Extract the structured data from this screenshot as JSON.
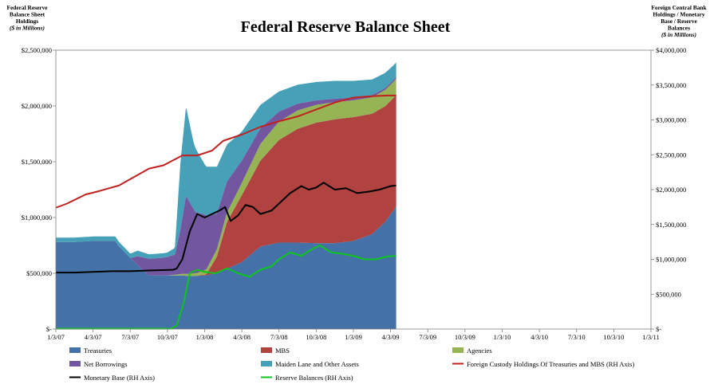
{
  "chart_data": {
    "type": "area",
    "title": "Federal Reserve Balance Sheet",
    "left_axis": {
      "title_lines": [
        "Federal Reserve",
        "Balance Sheet",
        "Holdings"
      ],
      "unit": "($ in Millions)",
      "ylim": [
        0,
        2500000
      ],
      "ticks": [
        {
          "value": 0,
          "label": "$-"
        },
        {
          "value": 500000,
          "label": "$500,000"
        },
        {
          "value": 1000000,
          "label": "$1,000,000"
        },
        {
          "value": 1500000,
          "label": "$1,500,000"
        },
        {
          "value": 2000000,
          "label": "$2,000,000"
        },
        {
          "value": 2500000,
          "label": "$2,500,000"
        }
      ]
    },
    "right_axis": {
      "title_lines": [
        "Foreign Central Bank",
        "Holdings / Monetary",
        "Base / Reserve",
        "Balances"
      ],
      "unit": "($ in Millions)",
      "ylim": [
        0,
        4000000
      ],
      "ticks": [
        {
          "value": 0,
          "label": "$-"
        },
        {
          "value": 500000,
          "label": "$500,000"
        },
        {
          "value": 1000000,
          "label": "$1,000,000"
        },
        {
          "value": 1500000,
          "label": "$1,500,000"
        },
        {
          "value": 2000000,
          "label": "$2,000,000"
        },
        {
          "value": 2500000,
          "label": "$2,500,000"
        },
        {
          "value": 3000000,
          "label": "$3,000,000"
        },
        {
          "value": 3500000,
          "label": "$3,500,000"
        },
        {
          "value": 4000000,
          "label": "$4,000,000"
        }
      ]
    },
    "x_labels": [
      "1/3/07",
      "4/3/07",
      "7/3/07",
      "10/3/07",
      "1/3/08",
      "4/3/08",
      "7/3/08",
      "10/3/08",
      "1/3/09",
      "4/3/09",
      "7/3/09",
      "10/3/09",
      "1/3/10",
      "4/3/10",
      "7/3/10",
      "10/3/10",
      "1/3/11"
    ],
    "grid": false,
    "legend_position": "bottom",
    "stacked_series": [
      {
        "name": "Treasuries",
        "color": "#4472a8",
        "axis": "left",
        "points": [
          [
            0,
            780000
          ],
          [
            0.5,
            780000
          ],
          [
            1.0,
            790000
          ],
          [
            1.5,
            790000
          ],
          [
            1.6,
            790000
          ],
          [
            1.7,
            740000
          ],
          [
            2.05,
            620000
          ],
          [
            2.5,
            480000
          ],
          [
            3.4,
            480000
          ],
          [
            3.6,
            475000
          ],
          [
            4.0,
            480000
          ],
          [
            4.33,
            500000
          ],
          [
            5.0,
            600000
          ],
          [
            5.5,
            740000
          ],
          [
            6.0,
            775000
          ],
          [
            6.5,
            775000
          ],
          [
            7.0,
            770000
          ],
          [
            7.5,
            770000
          ],
          [
            8.0,
            790000
          ],
          [
            8.5,
            850000
          ],
          [
            8.85,
            960000
          ],
          [
            9.05,
            1050000
          ],
          [
            9.15,
            1100000
          ]
        ]
      },
      {
        "name": "MBS",
        "color": "#b0433f",
        "axis": "left",
        "points": [
          [
            0,
            0
          ],
          [
            3.8,
            0
          ],
          [
            4.05,
            10000
          ],
          [
            4.33,
            150000
          ],
          [
            4.6,
            420000
          ],
          [
            5.0,
            600000
          ],
          [
            5.5,
            770000
          ],
          [
            6.0,
            920000
          ],
          [
            6.5,
            1020000
          ],
          [
            7.0,
            1080000
          ],
          [
            7.5,
            1110000
          ],
          [
            8.0,
            1110000
          ],
          [
            8.5,
            1080000
          ],
          [
            9.15,
            1000000
          ]
        ]
      },
      {
        "name": "Agencies",
        "color": "#97b455",
        "axis": "left",
        "points": [
          [
            0,
            0
          ],
          [
            3.0,
            0
          ],
          [
            3.4,
            15000
          ],
          [
            3.8,
            25000
          ],
          [
            4.0,
            40000
          ],
          [
            4.33,
            65000
          ],
          [
            5.0,
            110000
          ],
          [
            5.5,
            150000
          ],
          [
            6.0,
            165000
          ],
          [
            6.5,
            165000
          ],
          [
            7.0,
            160000
          ],
          [
            7.5,
            155000
          ],
          [
            8.0,
            150000
          ],
          [
            8.5,
            147000
          ],
          [
            9.15,
            145000
          ]
        ]
      },
      {
        "name": "Net Borrowings",
        "color": "#7256a0",
        "axis": "left",
        "points": [
          [
            0,
            0
          ],
          [
            2.0,
            0
          ],
          [
            2.2,
            80000
          ],
          [
            2.5,
            150000
          ],
          [
            2.9,
            160000
          ],
          [
            3.2,
            180000
          ],
          [
            3.35,
            400000
          ],
          [
            3.5,
            700000
          ],
          [
            3.75,
            550000
          ],
          [
            4.0,
            500000
          ],
          [
            4.33,
            320000
          ],
          [
            4.6,
            280000
          ],
          [
            5.0,
            200000
          ],
          [
            5.5,
            140000
          ],
          [
            6.0,
            90000
          ],
          [
            6.5,
            60000
          ],
          [
            7.0,
            40000
          ],
          [
            7.5,
            30000
          ],
          [
            8.0,
            25000
          ],
          [
            8.5,
            20000
          ],
          [
            9.15,
            15000
          ]
        ]
      },
      {
        "name": "Maiden Lane and Other Assets",
        "color": "#46a0b8",
        "axis": "left",
        "points": [
          [
            0,
            40000
          ],
          [
            2.0,
            40000
          ],
          [
            2.2,
            50000
          ],
          [
            2.5,
            40000
          ],
          [
            3.0,
            40000
          ],
          [
            3.2,
            60000
          ],
          [
            3.35,
            600000
          ],
          [
            3.5,
            800000
          ],
          [
            3.7,
            600000
          ],
          [
            4.0,
            450000
          ],
          [
            4.33,
            420000
          ],
          [
            4.6,
            330000
          ],
          [
            5.0,
            260000
          ],
          [
            5.5,
            210000
          ],
          [
            6.0,
            180000
          ],
          [
            6.5,
            170000
          ],
          [
            7.0,
            165000
          ],
          [
            7.5,
            160000
          ],
          [
            8.0,
            150000
          ],
          [
            8.5,
            140000
          ],
          [
            8.9,
            135000
          ],
          [
            9.15,
            130000
          ]
        ]
      }
    ],
    "line_series": [
      {
        "name": "Foreign Custody Holdings Of Treasuries and MBS (RH Axis)",
        "color": "#c0211f",
        "axis": "right",
        "points": [
          [
            0,
            1740000
          ],
          [
            0.3,
            1800000
          ],
          [
            0.8,
            1930000
          ],
          [
            1.1,
            1970000
          ],
          [
            1.7,
            2060000
          ],
          [
            2.1,
            2180000
          ],
          [
            2.5,
            2300000
          ],
          [
            2.9,
            2350000
          ],
          [
            3.4,
            2490000
          ],
          [
            3.8,
            2490000
          ],
          [
            4.2,
            2560000
          ],
          [
            4.5,
            2700000
          ],
          [
            5.0,
            2790000
          ],
          [
            5.5,
            2900000
          ],
          [
            6.0,
            2980000
          ],
          [
            6.5,
            3050000
          ],
          [
            7.0,
            3150000
          ],
          [
            7.5,
            3250000
          ],
          [
            8.0,
            3320000
          ],
          [
            8.5,
            3340000
          ],
          [
            8.9,
            3350000
          ],
          [
            9.15,
            3350000
          ]
        ]
      },
      {
        "name": "Monetary Base (RH Axis)",
        "color": "#000000",
        "axis": "right",
        "points": [
          [
            0,
            810000
          ],
          [
            0.5,
            810000
          ],
          [
            1.0,
            820000
          ],
          [
            1.5,
            830000
          ],
          [
            2.0,
            830000
          ],
          [
            2.5,
            840000
          ],
          [
            3.15,
            850000
          ],
          [
            3.25,
            870000
          ],
          [
            3.4,
            1000000
          ],
          [
            3.6,
            1400000
          ],
          [
            3.8,
            1650000
          ],
          [
            4.0,
            1600000
          ],
          [
            4.2,
            1650000
          ],
          [
            4.4,
            1700000
          ],
          [
            4.55,
            1750000
          ],
          [
            4.7,
            1550000
          ],
          [
            4.9,
            1630000
          ],
          [
            5.1,
            1780000
          ],
          [
            5.3,
            1750000
          ],
          [
            5.5,
            1650000
          ],
          [
            5.8,
            1700000
          ],
          [
            6.0,
            1800000
          ],
          [
            6.3,
            1950000
          ],
          [
            6.6,
            2050000
          ],
          [
            6.8,
            2000000
          ],
          [
            7.0,
            2030000
          ],
          [
            7.2,
            2100000
          ],
          [
            7.5,
            2000000
          ],
          [
            7.8,
            2020000
          ],
          [
            8.1,
            1950000
          ],
          [
            8.4,
            1970000
          ],
          [
            8.7,
            2000000
          ],
          [
            9.0,
            2050000
          ],
          [
            9.15,
            2060000
          ]
        ]
      },
      {
        "name": "Reserve Balances (RH Axis)",
        "color": "#0fc41f",
        "axis": "right",
        "points": [
          [
            0,
            5000
          ],
          [
            2.5,
            5000
          ],
          [
            3.1,
            5000
          ],
          [
            3.25,
            50000
          ],
          [
            3.45,
            400000
          ],
          [
            3.6,
            800000
          ],
          [
            3.8,
            850000
          ],
          [
            4.0,
            820000
          ],
          [
            4.3,
            800000
          ],
          [
            4.6,
            870000
          ],
          [
            4.9,
            800000
          ],
          [
            5.2,
            750000
          ],
          [
            5.5,
            850000
          ],
          [
            5.8,
            900000
          ],
          [
            6.0,
            1000000
          ],
          [
            6.3,
            1100000
          ],
          [
            6.6,
            1050000
          ],
          [
            6.9,
            1150000
          ],
          [
            7.1,
            1200000
          ],
          [
            7.4,
            1100000
          ],
          [
            7.7,
            1080000
          ],
          [
            8.0,
            1050000
          ],
          [
            8.3,
            1000000
          ],
          [
            8.6,
            1000000
          ],
          [
            8.9,
            1040000
          ],
          [
            9.15,
            1050000
          ]
        ]
      }
    ],
    "legend": [
      {
        "name": "Treasuries",
        "color": "#4472a8",
        "kind": "area"
      },
      {
        "name": "MBS",
        "color": "#b0433f",
        "kind": "area"
      },
      {
        "name": "Agencies",
        "color": "#97b455",
        "kind": "area"
      },
      {
        "name": "Net Borrowings",
        "color": "#7256a0",
        "kind": "area"
      },
      {
        "name": "Maiden Lane and Other Assets",
        "color": "#46a0b8",
        "kind": "area"
      },
      {
        "name": "Foreign Custody Holdings Of Treasuries and MBS (RH Axis)",
        "color": "#c0211f",
        "kind": "line"
      },
      {
        "name": "Monetary Base (RH Axis)",
        "color": "#000000",
        "kind": "line"
      },
      {
        "name": "Reserve Balances (RH Axis)",
        "color": "#0fc41f",
        "kind": "line"
      }
    ]
  }
}
